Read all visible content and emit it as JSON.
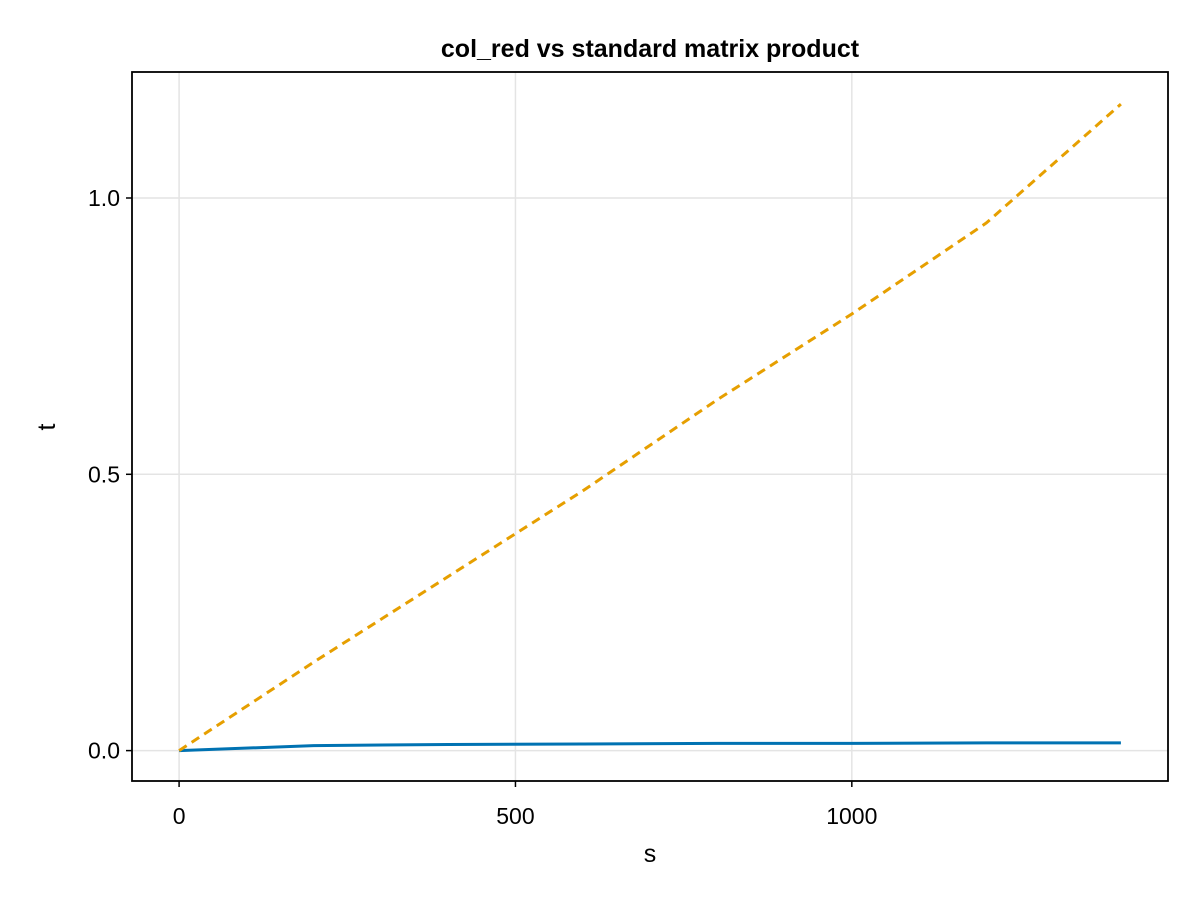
{
  "chart_data": {
    "type": "line",
    "title": "col_red vs standard matrix product",
    "xlabel": "s",
    "ylabel": "t",
    "xlim": [
      -70,
      1470
    ],
    "ylim": [
      -0.055,
      1.228
    ],
    "xticks": [
      0,
      500,
      1000
    ],
    "xtick_labels": [
      "0",
      "500",
      "1000"
    ],
    "yticks": [
      0.0,
      0.5,
      1.0
    ],
    "ytick_labels": [
      "0.0",
      "0.5",
      "1.0"
    ],
    "grid": true,
    "legend": "none",
    "series": [
      {
        "color": "#0072b2",
        "style": "solid",
        "x": [
          0,
          200,
          400,
          600,
          800,
          1000,
          1200,
          1400
        ],
        "y": [
          0.0,
          0.009,
          0.011,
          0.012,
          0.013,
          0.013,
          0.014,
          0.014
        ]
      },
      {
        "color": "#e69f00",
        "style": "dashed",
        "x": [
          0,
          200,
          400,
          600,
          800,
          1000,
          1200,
          1400
        ],
        "y": [
          0.0,
          0.16,
          0.315,
          0.47,
          0.635,
          0.79,
          0.955,
          1.17
        ]
      }
    ]
  }
}
